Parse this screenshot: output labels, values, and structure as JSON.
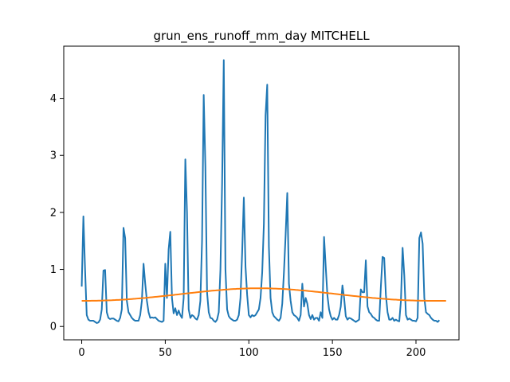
{
  "chart_data": {
    "type": "line",
    "title": "grun_ens_runoff_mm_day MITCHELL",
    "xlabel": "",
    "ylabel": "",
    "xlim": [
      -10.75,
      225.75
    ],
    "ylim": [
      -0.234,
      4.915
    ],
    "x_ticks": [
      0,
      50,
      100,
      150,
      200
    ],
    "y_ticks": [
      0,
      1,
      2,
      3,
      4
    ],
    "grid": false,
    "legend": "none",
    "series": [
      {
        "color": "#1f77b4",
        "x_start": 0,
        "x_step": 1,
        "values": [
          0.7,
          1.93,
          1.0,
          0.2,
          0.12,
          0.1,
          0.1,
          0.1,
          0.08,
          0.06,
          0.07,
          0.12,
          0.3,
          0.98,
          0.99,
          0.25,
          0.15,
          0.13,
          0.14,
          0.14,
          0.12,
          0.1,
          0.09,
          0.15,
          0.3,
          1.73,
          1.55,
          0.45,
          0.25,
          0.2,
          0.15,
          0.12,
          0.1,
          0.1,
          0.1,
          0.2,
          0.45,
          1.1,
          0.75,
          0.45,
          0.25,
          0.15,
          0.16,
          0.15,
          0.16,
          0.13,
          0.1,
          0.09,
          0.08,
          0.1,
          1.1,
          0.5,
          1.35,
          1.66,
          0.5,
          0.23,
          0.32,
          0.2,
          0.28,
          0.2,
          0.15,
          0.5,
          2.93,
          2.0,
          0.3,
          0.15,
          0.2,
          0.18,
          0.14,
          0.12,
          0.2,
          0.45,
          1.5,
          4.06,
          2.8,
          0.6,
          0.25,
          0.15,
          0.14,
          0.1,
          0.08,
          0.12,
          0.25,
          1.0,
          2.5,
          4.67,
          1.0,
          0.3,
          0.18,
          0.14,
          0.12,
          0.1,
          0.1,
          0.12,
          0.2,
          0.5,
          1.3,
          2.26,
          1.05,
          0.55,
          0.2,
          0.16,
          0.2,
          0.18,
          0.2,
          0.25,
          0.3,
          0.5,
          0.95,
          1.8,
          3.7,
          4.24,
          1.4,
          0.5,
          0.25,
          0.18,
          0.15,
          0.12,
          0.1,
          0.15,
          0.4,
          0.95,
          1.6,
          2.34,
          0.75,
          0.45,
          0.25,
          0.2,
          0.18,
          0.15,
          0.1,
          0.2,
          0.75,
          0.35,
          0.5,
          0.4,
          0.2,
          0.13,
          0.2,
          0.12,
          0.15,
          0.15,
          0.1,
          0.25,
          0.15,
          1.57,
          1.05,
          0.55,
          0.3,
          0.18,
          0.12,
          0.15,
          0.12,
          0.12,
          0.2,
          0.35,
          0.72,
          0.5,
          0.18,
          0.12,
          0.15,
          0.14,
          0.12,
          0.1,
          0.08,
          0.1,
          0.12,
          0.65,
          0.6,
          0.6,
          1.16,
          0.35,
          0.25,
          0.22,
          0.17,
          0.15,
          0.12,
          0.1,
          0.1,
          0.7,
          1.22,
          1.2,
          0.55,
          0.25,
          0.12,
          0.12,
          0.15,
          0.1,
          0.12,
          0.1,
          0.09,
          0.45,
          1.38,
          0.9,
          0.2,
          0.12,
          0.14,
          0.12,
          0.1,
          0.1,
          0.09,
          0.15,
          1.55,
          1.65,
          1.45,
          0.5,
          0.25,
          0.22,
          0.2,
          0.15,
          0.12,
          0.1,
          0.1,
          0.08,
          0.11
        ]
      },
      {
        "color": "#ff7f0e",
        "x_start": 0,
        "x_step": 1,
        "values": [
          0.45,
          0.45,
          0.45,
          0.45,
          0.45,
          0.45,
          0.451,
          0.451,
          0.452,
          0.452,
          0.453,
          0.454,
          0.454,
          0.455,
          0.456,
          0.457,
          0.458,
          0.459,
          0.46,
          0.462,
          0.463,
          0.465,
          0.466,
          0.468,
          0.47,
          0.471,
          0.473,
          0.475,
          0.477,
          0.48,
          0.482,
          0.484,
          0.486,
          0.489,
          0.491,
          0.494,
          0.496,
          0.499,
          0.501,
          0.504,
          0.507,
          0.51,
          0.513,
          0.516,
          0.519,
          0.522,
          0.525,
          0.528,
          0.531,
          0.534,
          0.537,
          0.54,
          0.544,
          0.547,
          0.55,
          0.553,
          0.557,
          0.56,
          0.563,
          0.567,
          0.57,
          0.573,
          0.577,
          0.58,
          0.583,
          0.587,
          0.59,
          0.593,
          0.596,
          0.6,
          0.603,
          0.606,
          0.609,
          0.612,
          0.615,
          0.618,
          0.621,
          0.624,
          0.627,
          0.63,
          0.632,
          0.635,
          0.637,
          0.64,
          0.642,
          0.645,
          0.647,
          0.649,
          0.651,
          0.653,
          0.655,
          0.657,
          0.658,
          0.66,
          0.661,
          0.663,
          0.664,
          0.665,
          0.666,
          0.667,
          0.668,
          0.669,
          0.669,
          0.67,
          0.67,
          0.67,
          0.67,
          0.67,
          0.67,
          0.67,
          0.669,
          0.669,
          0.668,
          0.667,
          0.666,
          0.665,
          0.664,
          0.663,
          0.661,
          0.66,
          0.658,
          0.657,
          0.655,
          0.653,
          0.651,
          0.649,
          0.647,
          0.645,
          0.642,
          0.64,
          0.637,
          0.635,
          0.632,
          0.63,
          0.627,
          0.624,
          0.621,
          0.618,
          0.615,
          0.612,
          0.609,
          0.606,
          0.603,
          0.6,
          0.596,
          0.593,
          0.59,
          0.587,
          0.583,
          0.58,
          0.577,
          0.573,
          0.57,
          0.567,
          0.563,
          0.56,
          0.557,
          0.553,
          0.55,
          0.547,
          0.544,
          0.54,
          0.537,
          0.534,
          0.531,
          0.528,
          0.525,
          0.522,
          0.519,
          0.516,
          0.513,
          0.51,
          0.507,
          0.504,
          0.501,
          0.499,
          0.496,
          0.494,
          0.491,
          0.489,
          0.486,
          0.484,
          0.482,
          0.48,
          0.477,
          0.475,
          0.473,
          0.471,
          0.47,
          0.468,
          0.466,
          0.465,
          0.463,
          0.462,
          0.46,
          0.459,
          0.458,
          0.457,
          0.456,
          0.455,
          0.454,
          0.454,
          0.453,
          0.452,
          0.452,
          0.451,
          0.451,
          0.45,
          0.45,
          0.45,
          0.45,
          0.45,
          0.45,
          0.45,
          0.45,
          0.45,
          0.45,
          0.45,
          0.45
        ]
      }
    ]
  }
}
